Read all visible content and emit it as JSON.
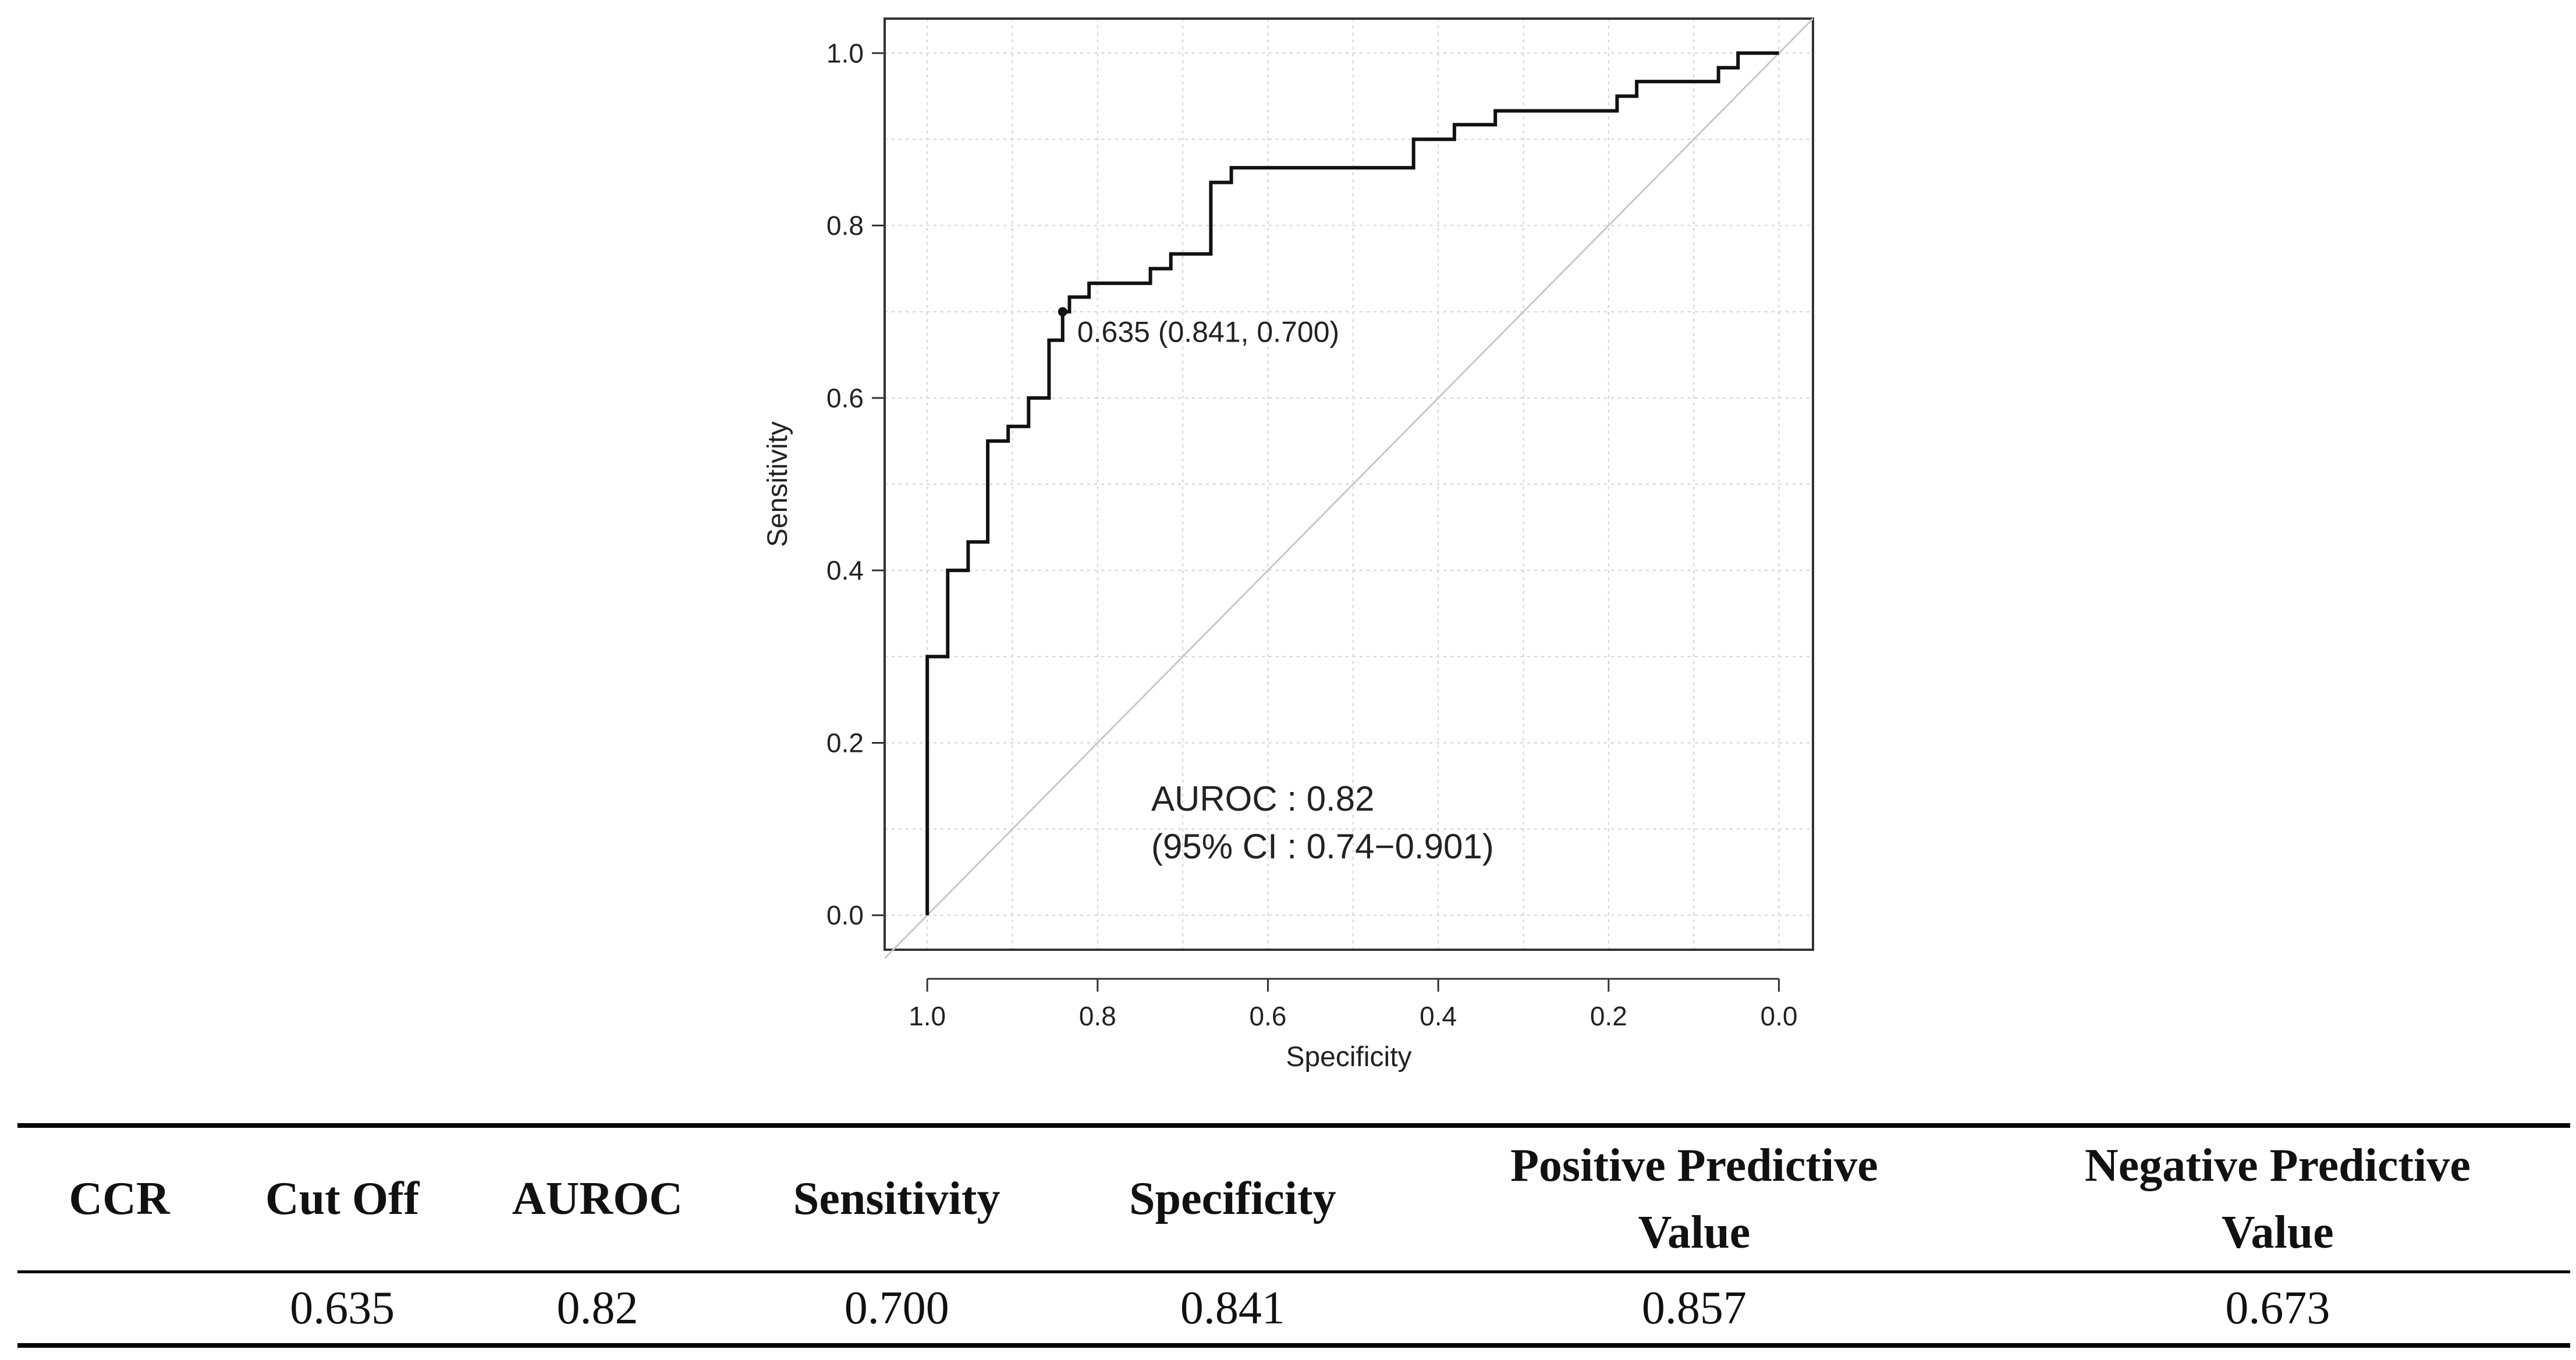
{
  "chart_data": {
    "type": "line",
    "title": "",
    "xlabel": "Specificity",
    "ylabel": "Sensitivity",
    "xlim": [
      1.05,
      -0.04
    ],
    "ylim": [
      -0.04,
      1.04
    ],
    "x_ticks": [
      "1.0",
      "0.8",
      "0.6",
      "0.4",
      "0.2",
      "0.0"
    ],
    "x_tick_values": [
      1.0,
      0.8,
      0.6,
      0.4,
      0.2,
      0.0
    ],
    "y_ticks": [
      "0.0",
      "0.2",
      "0.4",
      "0.6",
      "0.8",
      "1.0"
    ],
    "y_tick_values": [
      0.0,
      0.2,
      0.4,
      0.6,
      0.8,
      1.0
    ],
    "grid": true,
    "series": [
      {
        "name": "ROC curve",
        "x": [
          1.0,
          1.0,
          0.976,
          0.976,
          0.952,
          0.952,
          0.929,
          0.929,
          0.905,
          0.905,
          0.881,
          0.881,
          0.857,
          0.857,
          0.841,
          0.841,
          0.833,
          0.833,
          0.81,
          0.81,
          0.786,
          0.786,
          0.738,
          0.738,
          0.714,
          0.714,
          0.667,
          0.667,
          0.643,
          0.643,
          0.429,
          0.429,
          0.381,
          0.381,
          0.333,
          0.333,
          0.19,
          0.19,
          0.167,
          0.167,
          0.095,
          0.095,
          0.071,
          0.071,
          0.048,
          0.048,
          0.0
        ],
        "y": [
          0.0,
          0.3,
          0.3,
          0.4,
          0.4,
          0.433,
          0.433,
          0.55,
          0.55,
          0.567,
          0.567,
          0.6,
          0.6,
          0.667,
          0.667,
          0.7,
          0.7,
          0.717,
          0.717,
          0.733,
          0.733,
          0.733,
          0.733,
          0.75,
          0.75,
          0.767,
          0.767,
          0.85,
          0.85,
          0.867,
          0.867,
          0.9,
          0.9,
          0.917,
          0.917,
          0.933,
          0.933,
          0.95,
          0.95,
          0.967,
          0.967,
          0.967,
          0.967,
          0.983,
          0.983,
          1.0,
          1.0
        ]
      },
      {
        "name": "Reference diagonal",
        "x": [
          1.05,
          -0.04
        ],
        "y": [
          -0.05,
          1.04
        ]
      }
    ],
    "threshold_point": {
      "specificity": 0.841,
      "sensitivity": 0.7,
      "label": "0.635 (0.841, 0.700)"
    },
    "annotations": {
      "auroc_line": "AUROC :  0.82",
      "ci_line": "(95% CI : 0.74−0.901)"
    }
  },
  "table": {
    "headers": {
      "ccr": "CCR",
      "cutoff": "Cut Off",
      "auroc": "AUROC",
      "sensitivity": "Sensitivity",
      "specificity": "Specificity",
      "ppv_line1": "Positive Predictive",
      "ppv_line2": "Value",
      "npv_line1": "Negative Predictive",
      "npv_line2": "Value"
    },
    "row": {
      "ccr": "",
      "cutoff": "0.635",
      "auroc": "0.82",
      "sensitivity": "0.700",
      "specificity": "0.841",
      "ppv": "0.857",
      "npv": "0.673"
    }
  },
  "colors": {
    "curve": "#111111",
    "diagonal": "#c8c8c8",
    "grid": "#d2d2d2",
    "frame": "#333333",
    "plot_bg": "#ffffff"
  }
}
